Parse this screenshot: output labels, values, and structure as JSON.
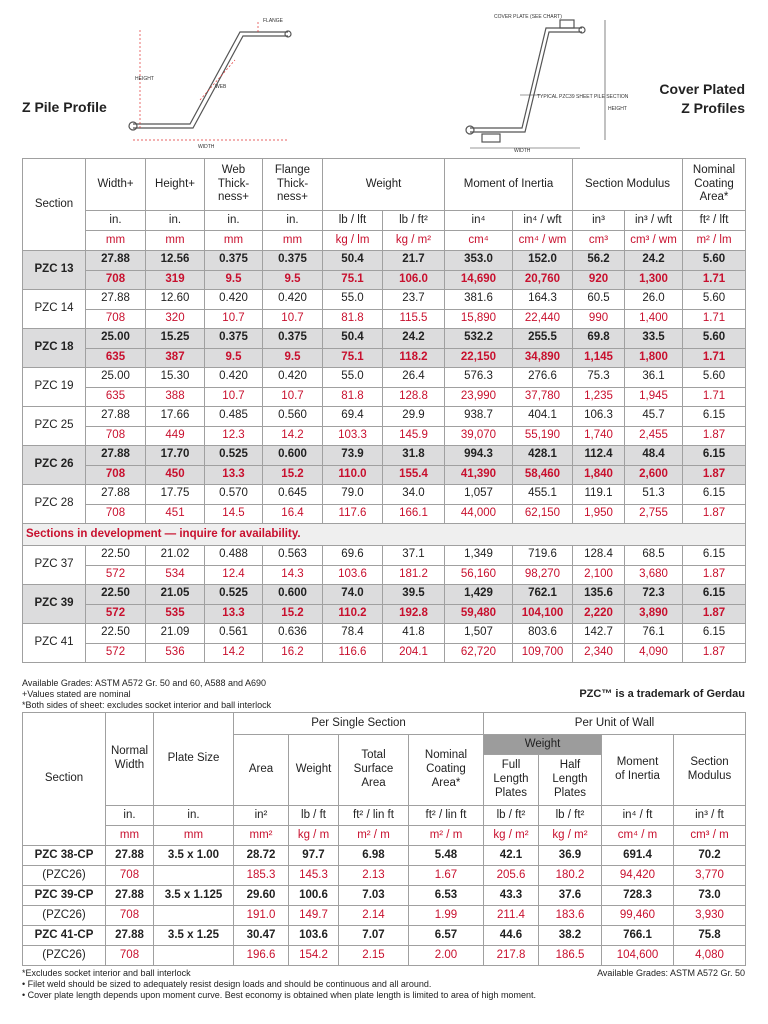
{
  "header": {
    "z_pile_title": "Z Pile Profile",
    "cover_title_lines": [
      "Cover Plated",
      "Z Profiles"
    ],
    "z_labels": {
      "flange": "FLANGE",
      "height": "HEIGHT",
      "web": "WEB",
      "width": "WIDTH"
    },
    "cp_labels": {
      "cover_plate": "COVER PLATE\n(SEE CHART)",
      "typical": "TYPICAL PZC39\nSHEET PILE\nSECTION",
      "height": "HEIGHT",
      "width": "WIDTH"
    }
  },
  "table1": {
    "headers": [
      "Section",
      "Width+",
      "Height+",
      "Web\nThick-\nness+",
      "Flange\nThick-\nness+",
      "Weight",
      "Moment of Inertia",
      "Section Modulus",
      "Nominal\nCoating\nArea*"
    ],
    "units_imperial": [
      "in.",
      "in.",
      "in.",
      "in.",
      "lb / lft",
      "lb / ft²",
      "in⁴",
      "in⁴ / wft",
      "in³",
      "in³ / wft",
      "ft² / lft"
    ],
    "units_metric": [
      "mm",
      "mm",
      "mm",
      "mm",
      "kg / lm",
      "kg / m²",
      "cm⁴",
      "cm⁴ / wm",
      "cm³",
      "cm³ / wm",
      "m² / lm"
    ],
    "rows": [
      {
        "section": "PZC 13",
        "bold": true,
        "imperial": [
          "27.88",
          "12.56",
          "0.375",
          "0.375",
          "50.4",
          "21.7",
          "353.0",
          "152.0",
          "56.2",
          "24.2",
          "5.60"
        ],
        "metric": [
          "708",
          "319",
          "9.5",
          "9.5",
          "75.1",
          "106.0",
          "14,690",
          "20,760",
          "920",
          "1,300",
          "1.71"
        ]
      },
      {
        "section": "PZC 14",
        "bold": false,
        "imperial": [
          "27.88",
          "12.60",
          "0.420",
          "0.420",
          "55.0",
          "23.7",
          "381.6",
          "164.3",
          "60.5",
          "26.0",
          "5.60"
        ],
        "metric": [
          "708",
          "320",
          "10.7",
          "10.7",
          "81.8",
          "115.5",
          "15,890",
          "22,440",
          "990",
          "1,400",
          "1.71"
        ]
      },
      {
        "section": "PZC 18",
        "bold": true,
        "imperial": [
          "25.00",
          "15.25",
          "0.375",
          "0.375",
          "50.4",
          "24.2",
          "532.2",
          "255.5",
          "69.8",
          "33.5",
          "5.60"
        ],
        "metric": [
          "635",
          "387",
          "9.5",
          "9.5",
          "75.1",
          "118.2",
          "22,150",
          "34,890",
          "1,145",
          "1,800",
          "1.71"
        ]
      },
      {
        "section": "PZC 19",
        "bold": false,
        "imperial": [
          "25.00",
          "15.30",
          "0.420",
          "0.420",
          "55.0",
          "26.4",
          "576.3",
          "276.6",
          "75.3",
          "36.1",
          "5.60"
        ],
        "metric": [
          "635",
          "388",
          "10.7",
          "10.7",
          "81.8",
          "128.8",
          "23,990",
          "37,780",
          "1,235",
          "1,945",
          "1.71"
        ]
      },
      {
        "section": "PZC 25",
        "bold": false,
        "imperial": [
          "27.88",
          "17.66",
          "0.485",
          "0.560",
          "69.4",
          "29.9",
          "938.7",
          "404.1",
          "106.3",
          "45.7",
          "6.15"
        ],
        "metric": [
          "708",
          "449",
          "12.3",
          "14.2",
          "103.3",
          "145.9",
          "39,070",
          "55,190",
          "1,740",
          "2,455",
          "1.87"
        ]
      },
      {
        "section": "PZC 26",
        "bold": true,
        "imperial": [
          "27.88",
          "17.70",
          "0.525",
          "0.600",
          "73.9",
          "31.8",
          "994.3",
          "428.1",
          "112.4",
          "48.4",
          "6.15"
        ],
        "metric": [
          "708",
          "450",
          "13.3",
          "15.2",
          "110.0",
          "155.4",
          "41,390",
          "58,460",
          "1,840",
          "2,600",
          "1.87"
        ]
      },
      {
        "section": "PZC 28",
        "bold": false,
        "imperial": [
          "27.88",
          "17.75",
          "0.570",
          "0.645",
          "79.0",
          "34.0",
          "1,057",
          "455.1",
          "119.1",
          "51.3",
          "6.15"
        ],
        "metric": [
          "708",
          "451",
          "14.5",
          "16.4",
          "117.6",
          "166.1",
          "44,000",
          "62,150",
          "1,950",
          "2,755",
          "1.87"
        ]
      }
    ],
    "development_note": "Sections in development — inquire for availability.",
    "development_rows": [
      {
        "section": "PZC 37",
        "bold": false,
        "imperial": [
          "22.50",
          "21.02",
          "0.488",
          "0.563",
          "69.6",
          "37.1",
          "1,349",
          "719.6",
          "128.4",
          "68.5",
          "6.15"
        ],
        "metric": [
          "572",
          "534",
          "12.4",
          "14.3",
          "103.6",
          "181.2",
          "56,160",
          "98,270",
          "2,100",
          "3,680",
          "1.87"
        ]
      },
      {
        "section": "PZC 39",
        "bold": true,
        "imperial": [
          "22.50",
          "21.05",
          "0.525",
          "0.600",
          "74.0",
          "39.5",
          "1,429",
          "762.1",
          "135.6",
          "72.3",
          "6.15"
        ],
        "metric": [
          "572",
          "535",
          "13.3",
          "15.2",
          "110.2",
          "192.8",
          "59,480",
          "104,100",
          "2,220",
          "3,890",
          "1.87"
        ]
      },
      {
        "section": "PZC 41",
        "bold": false,
        "imperial": [
          "22.50",
          "21.09",
          "0.561",
          "0.636",
          "78.4",
          "41.8",
          "1,507",
          "803.6",
          "142.7",
          "76.1",
          "6.15"
        ],
        "metric": [
          "572",
          "536",
          "14.2",
          "16.2",
          "116.6",
          "204.1",
          "62,720",
          "109,700",
          "2,340",
          "4,090",
          "1.87"
        ]
      }
    ]
  },
  "notes": [
    "Available Grades: ASTM A572 Gr. 50 and 60, A588 and A690",
    "+Values stated are nominal",
    "*Both sides of sheet: excludes socket interior and ball interlock"
  ],
  "trademark": "PZC™ is a trademark of Gerdau",
  "table2": {
    "group_single": "Per Single Section",
    "group_wall": "Per Unit of Wall",
    "weight_group": "Weight",
    "headers": [
      "Section",
      "Normal\nWidth",
      "Plate Size",
      "Area",
      "Weight",
      "Total\nSurface\nArea",
      "Nominal\nCoating\nArea*",
      "Full\nLength\nPlates",
      "Half\nLength\nPlates",
      "Moment\nof Inertia",
      "Section\nModulus"
    ],
    "units_imperial": [
      "in.",
      "in.",
      "in²",
      "lb / ft",
      "ft² / lin ft",
      "ft² / lin ft",
      "lb / ft²",
      "lb / ft²",
      "in⁴ / ft",
      "in³ / ft"
    ],
    "units_metric": [
      "mm",
      "mm",
      "mm²",
      "kg / m",
      "m² / m",
      "m² / m",
      "kg / m²",
      "kg / m²",
      "cm⁴ / m",
      "cm³ / m"
    ],
    "rows": [
      {
        "section": "PZC 38-CP",
        "base": "(PZC26)",
        "imperial": [
          "27.88",
          "3.5 x 1.00",
          "28.72",
          "97.7",
          "6.98",
          "5.48",
          "42.1",
          "36.9",
          "691.4",
          "70.2"
        ],
        "metric": [
          "708",
          null,
          "185.3",
          "145.3",
          "2.13",
          "1.67",
          "205.6",
          "180.2",
          "94,420",
          "3,770"
        ]
      },
      {
        "section": "PZC 39-CP",
        "base": "(PZC26)",
        "imperial": [
          "27.88",
          "3.5 x 1.125",
          "29.60",
          "100.6",
          "7.03",
          "6.53",
          "43.3",
          "37.6",
          "728.3",
          "73.0"
        ],
        "metric": [
          "708",
          null,
          "191.0",
          "149.7",
          "2.14",
          "1.99",
          "211.4",
          "183.6",
          "99,460",
          "3,930"
        ]
      },
      {
        "section": "PZC 41-CP",
        "base": "(PZC26)",
        "imperial": [
          "27.88",
          "3.5 x 1.25",
          "30.47",
          "103.6",
          "7.07",
          "6.57",
          "44.6",
          "38.2",
          "766.1",
          "75.8"
        ],
        "metric": [
          "708",
          null,
          "196.6",
          "154.2",
          "2.15",
          "2.00",
          "217.8",
          "186.5",
          "104,600",
          "4,080"
        ]
      }
    ]
  },
  "footnotes": [
    "*Excludes socket interior and ball interlock",
    "• Filet weld should be sized to adequately resist design loads and should be continuous and all around.",
    "• Cover plate length depends upon moment curve. Best economy is obtained when plate length is limited to area of high moment."
  ],
  "footnote_grades": "Available Grades: ASTM A572 Gr. 50"
}
